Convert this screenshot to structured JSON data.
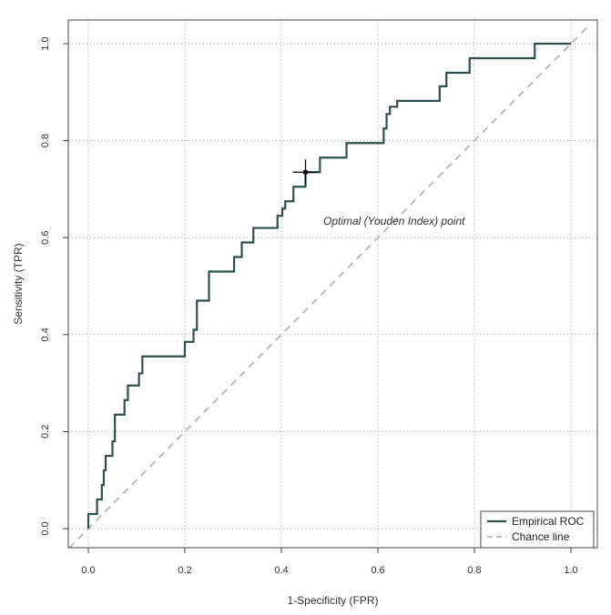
{
  "chart_data": {
    "type": "line",
    "xlabel": "1-Specificity (FPR)",
    "ylabel": "Sensitivity (TPR)",
    "xlim": [
      0.0,
      1.0
    ],
    "ylim": [
      0.0,
      1.0
    ],
    "xticks": [
      "0.0",
      "0.2",
      "0.4",
      "0.6",
      "0.8",
      "1.0"
    ],
    "yticks": [
      "0.0",
      "0.2",
      "0.4",
      "0.6",
      "0.8",
      "1.0"
    ],
    "grid": true,
    "legend_position": "bottom-right",
    "series": [
      {
        "name": "Empirical ROC",
        "color": "#2f4f4f",
        "style": "step",
        "points": [
          [
            0.0,
            0.0
          ],
          [
            0.0,
            0.03
          ],
          [
            0.018,
            0.03
          ],
          [
            0.018,
            0.06
          ],
          [
            0.028,
            0.06
          ],
          [
            0.028,
            0.09
          ],
          [
            0.032,
            0.09
          ],
          [
            0.032,
            0.12
          ],
          [
            0.036,
            0.12
          ],
          [
            0.036,
            0.15
          ],
          [
            0.05,
            0.15
          ],
          [
            0.05,
            0.18
          ],
          [
            0.055,
            0.18
          ],
          [
            0.055,
            0.235
          ],
          [
            0.075,
            0.235
          ],
          [
            0.075,
            0.265
          ],
          [
            0.082,
            0.265
          ],
          [
            0.082,
            0.295
          ],
          [
            0.105,
            0.295
          ],
          [
            0.105,
            0.32
          ],
          [
            0.112,
            0.32
          ],
          [
            0.112,
            0.355
          ],
          [
            0.2,
            0.355
          ],
          [
            0.2,
            0.385
          ],
          [
            0.218,
            0.385
          ],
          [
            0.218,
            0.41
          ],
          [
            0.225,
            0.41
          ],
          [
            0.225,
            0.47
          ],
          [
            0.25,
            0.47
          ],
          [
            0.25,
            0.53
          ],
          [
            0.302,
            0.53
          ],
          [
            0.302,
            0.56
          ],
          [
            0.318,
            0.56
          ],
          [
            0.318,
            0.59
          ],
          [
            0.342,
            0.59
          ],
          [
            0.342,
            0.62
          ],
          [
            0.392,
            0.62
          ],
          [
            0.392,
            0.645
          ],
          [
            0.402,
            0.645
          ],
          [
            0.402,
            0.66
          ],
          [
            0.408,
            0.66
          ],
          [
            0.408,
            0.675
          ],
          [
            0.425,
            0.675
          ],
          [
            0.425,
            0.705
          ],
          [
            0.45,
            0.705
          ],
          [
            0.45,
            0.735
          ],
          [
            0.48,
            0.735
          ],
          [
            0.48,
            0.765
          ],
          [
            0.535,
            0.765
          ],
          [
            0.535,
            0.795
          ],
          [
            0.612,
            0.795
          ],
          [
            0.612,
            0.825
          ],
          [
            0.618,
            0.825
          ],
          [
            0.618,
            0.855
          ],
          [
            0.625,
            0.855
          ],
          [
            0.625,
            0.87
          ],
          [
            0.64,
            0.87
          ],
          [
            0.64,
            0.882
          ],
          [
            0.728,
            0.882
          ],
          [
            0.728,
            0.912
          ],
          [
            0.742,
            0.912
          ],
          [
            0.742,
            0.94
          ],
          [
            0.79,
            0.94
          ],
          [
            0.79,
            0.97
          ],
          [
            0.925,
            0.97
          ],
          [
            0.925,
            1.0
          ],
          [
            1.0,
            1.0
          ]
        ]
      },
      {
        "name": "Chance line",
        "color": "#bbbbbb",
        "style": "dashed",
        "points": [
          [
            -0.04,
            -0.04
          ],
          [
            1.04,
            1.04
          ]
        ]
      }
    ],
    "annotations": [
      {
        "label": "Optimal (Youden Index) point",
        "marker_x": 0.45,
        "marker_y": 0.735
      }
    ]
  }
}
